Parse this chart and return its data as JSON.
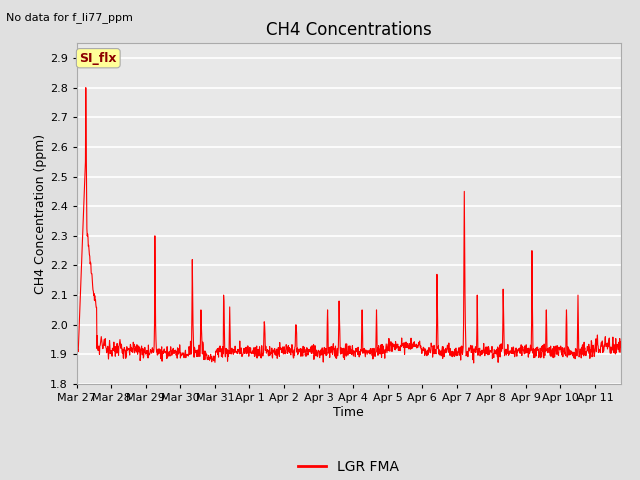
{
  "title": "CH4 Concentrations",
  "xlabel": "Time",
  "ylabel": "CH4 Concentration (ppm)",
  "top_left_text": "No data for f_li77_ppm",
  "legend_label": "LGR FMA",
  "line_color": "#FF0000",
  "line_width": 0.8,
  "ylim": [
    1.8,
    2.95
  ],
  "yticks": [
    1.8,
    1.9,
    2.0,
    2.1,
    2.2,
    2.3,
    2.4,
    2.5,
    2.6,
    2.7,
    2.8,
    2.9
  ],
  "background_color": "#E0E0E0",
  "plot_bg_color": "#E8E8E8",
  "grid_color": "#FFFFFF",
  "annotation_text": "SI_flx",
  "annotation_box_facecolor": "#FFFF99",
  "annotation_text_color": "#8B0000",
  "annotation_edge_color": "#AAAAAA",
  "title_fontsize": 12,
  "axis_fontsize": 9,
  "tick_fontsize": 8,
  "legend_fontsize": 10
}
